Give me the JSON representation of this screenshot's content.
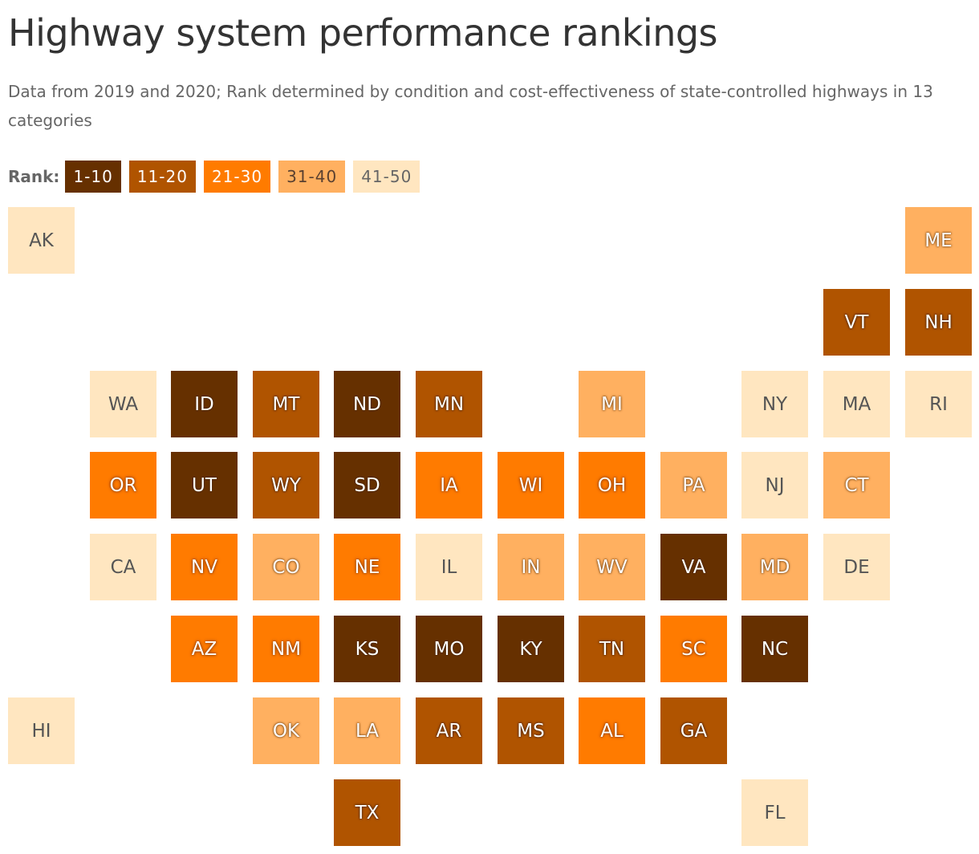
{
  "title": "Highway system performance rankings",
  "subtitle": "Data from 2019 and 2020; Rank determined by condition and cost-effectiveness of state-controlled highways in 13 categories",
  "legend": {
    "label": "Rank:",
    "bins": [
      {
        "label": "1-10",
        "color": "#663000",
        "text_color": "#ffffff",
        "style": "dark"
      },
      {
        "label": "11-20",
        "color": "#b05400",
        "text_color": "#ffffff",
        "style": "mid"
      },
      {
        "label": "21-30",
        "color": "#ff7b00",
        "text_color": "#ffffff",
        "style": "orange"
      },
      {
        "label": "31-40",
        "color": "#ffb060",
        "text_color": "#5a4030",
        "style": "light"
      },
      {
        "label": "41-50",
        "color": "#ffe6c0",
        "text_color": "#666666",
        "style": "pale"
      }
    ]
  },
  "states": [
    {
      "abbr": "AK",
      "col": 0,
      "row": 0,
      "bin": 4
    },
    {
      "abbr": "ME",
      "col": 11,
      "row": 0,
      "bin": 3
    },
    {
      "abbr": "VT",
      "col": 10,
      "row": 1,
      "bin": 1
    },
    {
      "abbr": "NH",
      "col": 11,
      "row": 1,
      "bin": 1
    },
    {
      "abbr": "WA",
      "col": 1,
      "row": 2,
      "bin": 4
    },
    {
      "abbr": "ID",
      "col": 2,
      "row": 2,
      "bin": 0
    },
    {
      "abbr": "MT",
      "col": 3,
      "row": 2,
      "bin": 1
    },
    {
      "abbr": "ND",
      "col": 4,
      "row": 2,
      "bin": 0
    },
    {
      "abbr": "MN",
      "col": 5,
      "row": 2,
      "bin": 1
    },
    {
      "abbr": "MI",
      "col": 7,
      "row": 2,
      "bin": 3
    },
    {
      "abbr": "NY",
      "col": 9,
      "row": 2,
      "bin": 4
    },
    {
      "abbr": "MA",
      "col": 10,
      "row": 2,
      "bin": 4
    },
    {
      "abbr": "RI",
      "col": 11,
      "row": 2,
      "bin": 4
    },
    {
      "abbr": "OR",
      "col": 1,
      "row": 3,
      "bin": 2
    },
    {
      "abbr": "UT",
      "col": 2,
      "row": 3,
      "bin": 0
    },
    {
      "abbr": "WY",
      "col": 3,
      "row": 3,
      "bin": 1
    },
    {
      "abbr": "SD",
      "col": 4,
      "row": 3,
      "bin": 0
    },
    {
      "abbr": "IA",
      "col": 5,
      "row": 3,
      "bin": 2
    },
    {
      "abbr": "WI",
      "col": 6,
      "row": 3,
      "bin": 2
    },
    {
      "abbr": "OH",
      "col": 7,
      "row": 3,
      "bin": 2
    },
    {
      "abbr": "PA",
      "col": 8,
      "row": 3,
      "bin": 3
    },
    {
      "abbr": "NJ",
      "col": 9,
      "row": 3,
      "bin": 4
    },
    {
      "abbr": "CT",
      "col": 10,
      "row": 3,
      "bin": 3
    },
    {
      "abbr": "CA",
      "col": 1,
      "row": 4,
      "bin": 4
    },
    {
      "abbr": "NV",
      "col": 2,
      "row": 4,
      "bin": 2
    },
    {
      "abbr": "CO",
      "col": 3,
      "row": 4,
      "bin": 3
    },
    {
      "abbr": "NE",
      "col": 4,
      "row": 4,
      "bin": 2
    },
    {
      "abbr": "IL",
      "col": 5,
      "row": 4,
      "bin": 4
    },
    {
      "abbr": "IN",
      "col": 6,
      "row": 4,
      "bin": 3
    },
    {
      "abbr": "WV",
      "col": 7,
      "row": 4,
      "bin": 3
    },
    {
      "abbr": "VA",
      "col": 8,
      "row": 4,
      "bin": 0
    },
    {
      "abbr": "MD",
      "col": 9,
      "row": 4,
      "bin": 3
    },
    {
      "abbr": "DE",
      "col": 10,
      "row": 4,
      "bin": 4
    },
    {
      "abbr": "AZ",
      "col": 2,
      "row": 5,
      "bin": 2
    },
    {
      "abbr": "NM",
      "col": 3,
      "row": 5,
      "bin": 2
    },
    {
      "abbr": "KS",
      "col": 4,
      "row": 5,
      "bin": 0
    },
    {
      "abbr": "MO",
      "col": 5,
      "row": 5,
      "bin": 0
    },
    {
      "abbr": "KY",
      "col": 6,
      "row": 5,
      "bin": 0
    },
    {
      "abbr": "TN",
      "col": 7,
      "row": 5,
      "bin": 1
    },
    {
      "abbr": "SC",
      "col": 8,
      "row": 5,
      "bin": 2
    },
    {
      "abbr": "NC",
      "col": 9,
      "row": 5,
      "bin": 0
    },
    {
      "abbr": "HI",
      "col": 0,
      "row": 6,
      "bin": 4
    },
    {
      "abbr": "OK",
      "col": 3,
      "row": 6,
      "bin": 3
    },
    {
      "abbr": "LA",
      "col": 4,
      "row": 6,
      "bin": 3
    },
    {
      "abbr": "AR",
      "col": 5,
      "row": 6,
      "bin": 1
    },
    {
      "abbr": "MS",
      "col": 6,
      "row": 6,
      "bin": 1
    },
    {
      "abbr": "AL",
      "col": 7,
      "row": 6,
      "bin": 2
    },
    {
      "abbr": "GA",
      "col": 8,
      "row": 6,
      "bin": 1
    },
    {
      "abbr": "TX",
      "col": 4,
      "row": 7,
      "bin": 1
    },
    {
      "abbr": "FL",
      "col": 9,
      "row": 7,
      "bin": 4
    }
  ]
}
